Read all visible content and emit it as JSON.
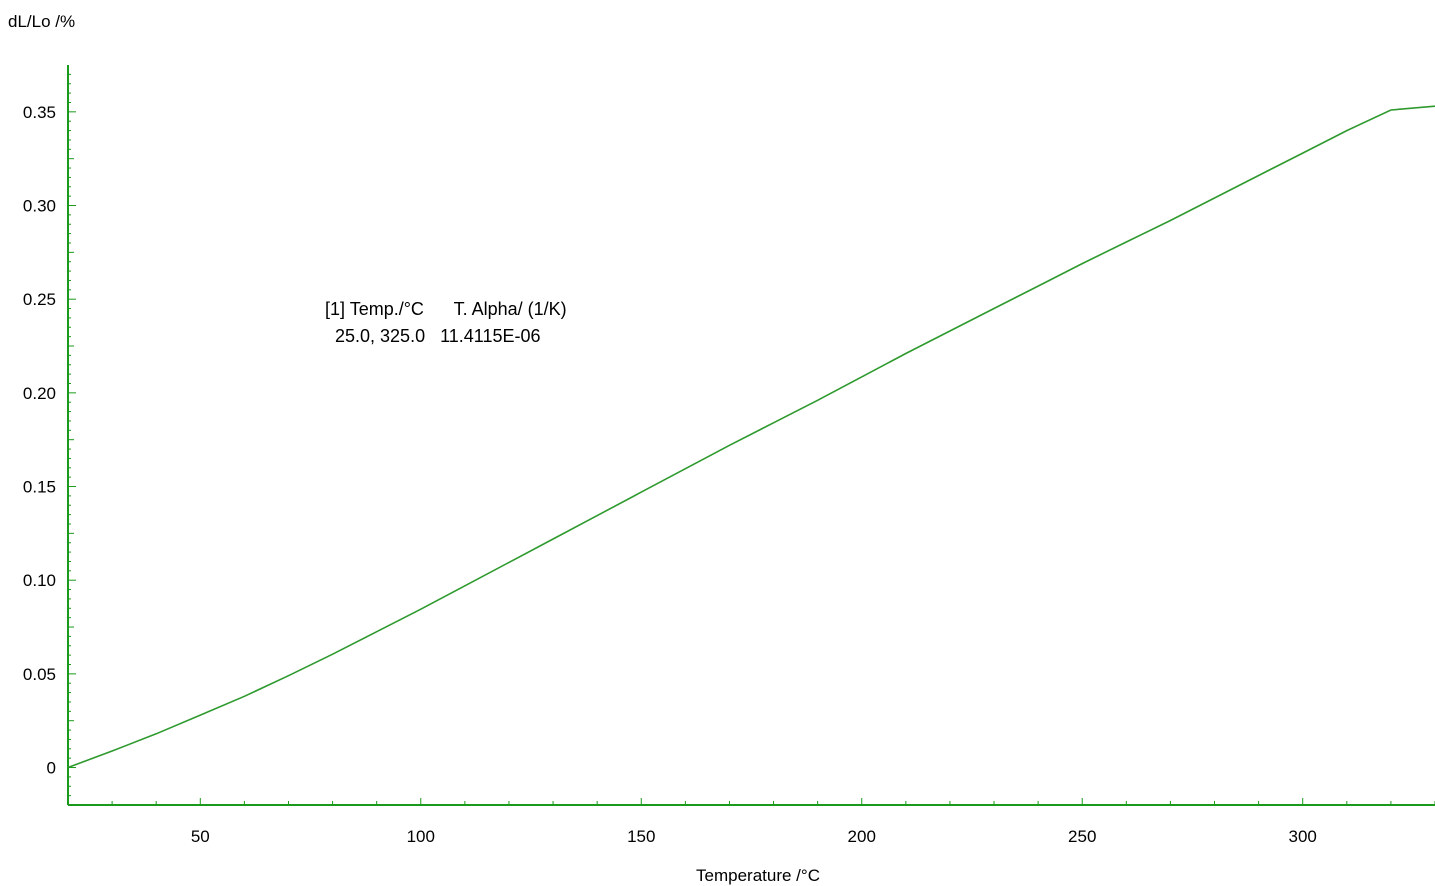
{
  "chart_data": {
    "type": "line",
    "xlabel": "Temperature /°C",
    "ylabel": "dL/Lo /%",
    "xlim": [
      20,
      330
    ],
    "ylim": [
      -0.02,
      0.375
    ],
    "x_ticks": [
      50,
      100,
      150,
      200,
      250,
      300
    ],
    "x_tick_labels": [
      "50",
      "100",
      "150",
      "200",
      "250",
      "300"
    ],
    "y_ticks": [
      0,
      0.05,
      0.1,
      0.15,
      0.2,
      0.25,
      0.3,
      0.35
    ],
    "y_tick_labels": [
      "0",
      "0.05",
      "0.10",
      "0.15",
      "0.20",
      "0.25",
      "0.30",
      "0.35"
    ],
    "grid": false,
    "axis_color": "#1a9a1a",
    "series": [
      {
        "color": "#2e9a2e",
        "x": [
          20,
          30,
          40,
          50,
          60,
          70,
          80,
          90,
          100,
          110,
          120,
          130,
          140,
          150,
          160,
          170,
          180,
          190,
          200,
          210,
          220,
          230,
          240,
          250,
          260,
          270,
          280,
          290,
          300,
          310,
          320,
          330
        ],
        "y": [
          0.0,
          0.0088,
          0.018,
          0.028,
          0.038,
          0.049,
          0.0605,
          0.0725,
          0.0845,
          0.097,
          0.1095,
          0.122,
          0.1345,
          0.147,
          0.1595,
          0.172,
          0.184,
          0.196,
          0.2085,
          0.221,
          0.233,
          0.245,
          0.257,
          0.269,
          0.2805,
          0.292,
          0.304,
          0.316,
          0.328,
          0.34,
          0.351,
          0.353
        ]
      }
    ],
    "annotation": {
      "line1": "[1] Temp./°C      T. Alpha/ (1/K)",
      "line2": "  25.0, 325.0   11.4115E-06"
    }
  }
}
